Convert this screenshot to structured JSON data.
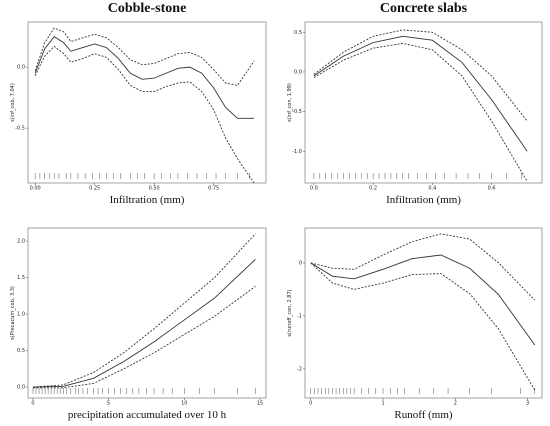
{
  "chart_data": [
    {
      "type": "line",
      "title": "Cobble-stone",
      "x_label": "Infiltration (mm)",
      "y_label": "s(inf_cob, 7.04)",
      "x": [
        0,
        0.04,
        0.08,
        0.12,
        0.15,
        0.2,
        0.25,
        0.3,
        0.35,
        0.4,
        0.45,
        0.5,
        0.55,
        0.6,
        0.65,
        0.7,
        0.75,
        0.8,
        0.85,
        0.92
      ],
      "series": [
        {
          "color": "#333333",
          "dash": false,
          "values": [
            -0.05,
            0.15,
            0.25,
            0.2,
            0.13,
            0.16,
            0.19,
            0.16,
            0.07,
            -0.05,
            -0.1,
            -0.09,
            -0.05,
            -0.01,
            0.0,
            -0.05,
            -0.17,
            -0.33,
            -0.42,
            -0.42
          ]
        },
        {
          "color": "#333333",
          "dash": true,
          "values": [
            -0.03,
            0.2,
            0.32,
            0.29,
            0.21,
            0.24,
            0.27,
            0.24,
            0.16,
            0.06,
            0.02,
            0.03,
            0.07,
            0.11,
            0.12,
            0.08,
            -0.02,
            -0.13,
            -0.15,
            0.05
          ]
        },
        {
          "color": "#333333",
          "dash": true,
          "values": [
            -0.07,
            0.09,
            0.17,
            0.11,
            0.04,
            0.07,
            0.11,
            0.08,
            -0.02,
            -0.15,
            -0.2,
            -0.2,
            -0.16,
            -0.13,
            -0.12,
            -0.2,
            -0.35,
            -0.58,
            -0.75,
            -0.95
          ]
        }
      ],
      "rug": [
        0,
        0.02,
        0.04,
        0.06,
        0.08,
        0.1,
        0.13,
        0.15,
        0.18,
        0.21,
        0.24,
        0.27,
        0.3,
        0.33,
        0.36,
        0.4,
        0.43,
        0.46,
        0.5,
        0.53,
        0.57,
        0.6,
        0.64,
        0.68,
        0.72,
        0.76,
        0.8,
        0.85,
        0.9
      ],
      "xlim": [
        -0.03,
        0.97
      ],
      "xticks": [
        {
          "value": 0,
          "label": "0.00"
        },
        {
          "value": 0.25,
          "label": "0.25"
        },
        {
          "value": 0.5,
          "label": "0.50"
        },
        {
          "value": 0.75,
          "label": "0.75"
        }
      ],
      "ylim": [
        -0.95,
        0.37
      ],
      "yticks": [
        {
          "value": 0,
          "label": "0.0"
        },
        {
          "value": -0.5,
          "label": "-0.5"
        }
      ]
    },
    {
      "type": "line",
      "title": "Concrete slabs",
      "x_label": "Infiltration (mm)",
      "y_label": "s(inf_con, 1.99)",
      "x": [
        0,
        0.1,
        0.2,
        0.3,
        0.4,
        0.5,
        0.6,
        0.72
      ],
      "series": [
        {
          "color": "#333333",
          "dash": false,
          "values": [
            -0.05,
            0.2,
            0.37,
            0.45,
            0.4,
            0.12,
            -0.35,
            -1.0
          ]
        },
        {
          "color": "#333333",
          "dash": true,
          "values": [
            -0.03,
            0.25,
            0.45,
            0.53,
            0.5,
            0.28,
            -0.05,
            -0.62
          ]
        },
        {
          "color": "#333333",
          "dash": true,
          "values": [
            -0.07,
            0.15,
            0.3,
            0.36,
            0.28,
            -0.05,
            -0.62,
            -1.38
          ]
        }
      ],
      "rug": [
        0,
        0.02,
        0.04,
        0.06,
        0.08,
        0.1,
        0.12,
        0.14,
        0.16,
        0.18,
        0.2,
        0.22,
        0.24,
        0.26,
        0.28,
        0.3,
        0.32,
        0.35,
        0.38,
        0.41,
        0.44,
        0.48,
        0.52,
        0.56,
        0.6,
        0.65,
        0.7
      ],
      "xlim": [
        -0.03,
        0.77
      ],
      "xticks": [
        {
          "value": 0,
          "label": "0.0"
        },
        {
          "value": 0.2,
          "label": "0.2"
        },
        {
          "value": 0.4,
          "label": "0.4"
        },
        {
          "value": 0.6,
          "label": "0.6"
        }
      ],
      "ylim": [
        -1.4,
        0.63
      ],
      "yticks": [
        {
          "value": 0.5,
          "label": "0.5"
        },
        {
          "value": 0,
          "label": "0.0"
        },
        {
          "value": -0.5,
          "label": "-0.5"
        },
        {
          "value": -1,
          "label": "-1.0"
        }
      ]
    },
    {
      "type": "line",
      "x_label": "precipitation accumulated over 10 h",
      "y_label": "s(Precacum_cob, 3.3)",
      "x": [
        0,
        2,
        4,
        6,
        8,
        10,
        12,
        14.7
      ],
      "series": [
        {
          "color": "#333333",
          "dash": false,
          "values": [
            0,
            0.01,
            0.12,
            0.35,
            0.62,
            0.92,
            1.22,
            1.75
          ]
        },
        {
          "color": "#333333",
          "dash": true,
          "values": [
            0,
            0.03,
            0.2,
            0.47,
            0.8,
            1.15,
            1.5,
            2.1
          ]
        },
        {
          "color": "#333333",
          "dash": true,
          "values": [
            -0.01,
            -0.01,
            0.05,
            0.25,
            0.47,
            0.72,
            0.97,
            1.38
          ]
        }
      ],
      "rug": [
        0,
        0.2,
        0.4,
        0.6,
        0.8,
        1,
        1.2,
        1.4,
        1.6,
        1.8,
        2,
        2.2,
        2.5,
        2.8,
        3,
        3.3,
        3.6,
        4,
        4.3,
        4.6,
        5,
        5.4,
        5.8,
        6.2,
        6.6,
        7,
        7.5,
        8,
        8.6,
        9.2,
        10,
        11,
        12,
        13.5,
        14.7
      ],
      "xlim": [
        -0.33,
        15.4
      ],
      "xticks": [
        0,
        5,
        10,
        15
      ],
      "ylim": [
        -0.15,
        2.18
      ],
      "yticks": [
        {
          "value": 0,
          "label": "0.0"
        },
        {
          "value": 0.5,
          "label": "0.5"
        },
        {
          "value": 1,
          "label": "1.0"
        },
        {
          "value": 1.5,
          "label": "1.5"
        },
        {
          "value": 2,
          "label": "2.0"
        }
      ]
    },
    {
      "type": "line",
      "x_label": "Runoff (mm)",
      "y_label": "s(runoff_con, 2.87)",
      "x": [
        0,
        0.3,
        0.6,
        1.0,
        1.4,
        1.8,
        2.2,
        2.6,
        3.1
      ],
      "series": [
        {
          "color": "#333333",
          "dash": false,
          "values": [
            0,
            -0.25,
            -0.3,
            -0.12,
            0.08,
            0.15,
            -0.1,
            -0.6,
            -1.55
          ]
        },
        {
          "color": "#333333",
          "dash": true,
          "values": [
            0,
            -0.1,
            -0.12,
            0.15,
            0.4,
            0.55,
            0.45,
            0.0,
            -0.7
          ]
        },
        {
          "color": "#333333",
          "dash": true,
          "values": [
            0,
            -0.38,
            -0.5,
            -0.38,
            -0.22,
            -0.2,
            -0.58,
            -1.25,
            -2.4
          ]
        }
      ],
      "rug": [
        0,
        0.05,
        0.1,
        0.15,
        0.2,
        0.25,
        0.3,
        0.35,
        0.4,
        0.45,
        0.5,
        0.55,
        0.6,
        0.7,
        0.8,
        0.9,
        1.0,
        1.1,
        1.2,
        1.3,
        1.5,
        1.7,
        1.9,
        2.2,
        2.5,
        2.9,
        3.1
      ],
      "xlim": [
        -0.08,
        3.2
      ],
      "xticks": [
        0,
        1,
        2,
        3
      ],
      "ylim": [
        -2.55,
        0.66
      ],
      "yticks": [
        0,
        -1,
        -2
      ]
    }
  ]
}
